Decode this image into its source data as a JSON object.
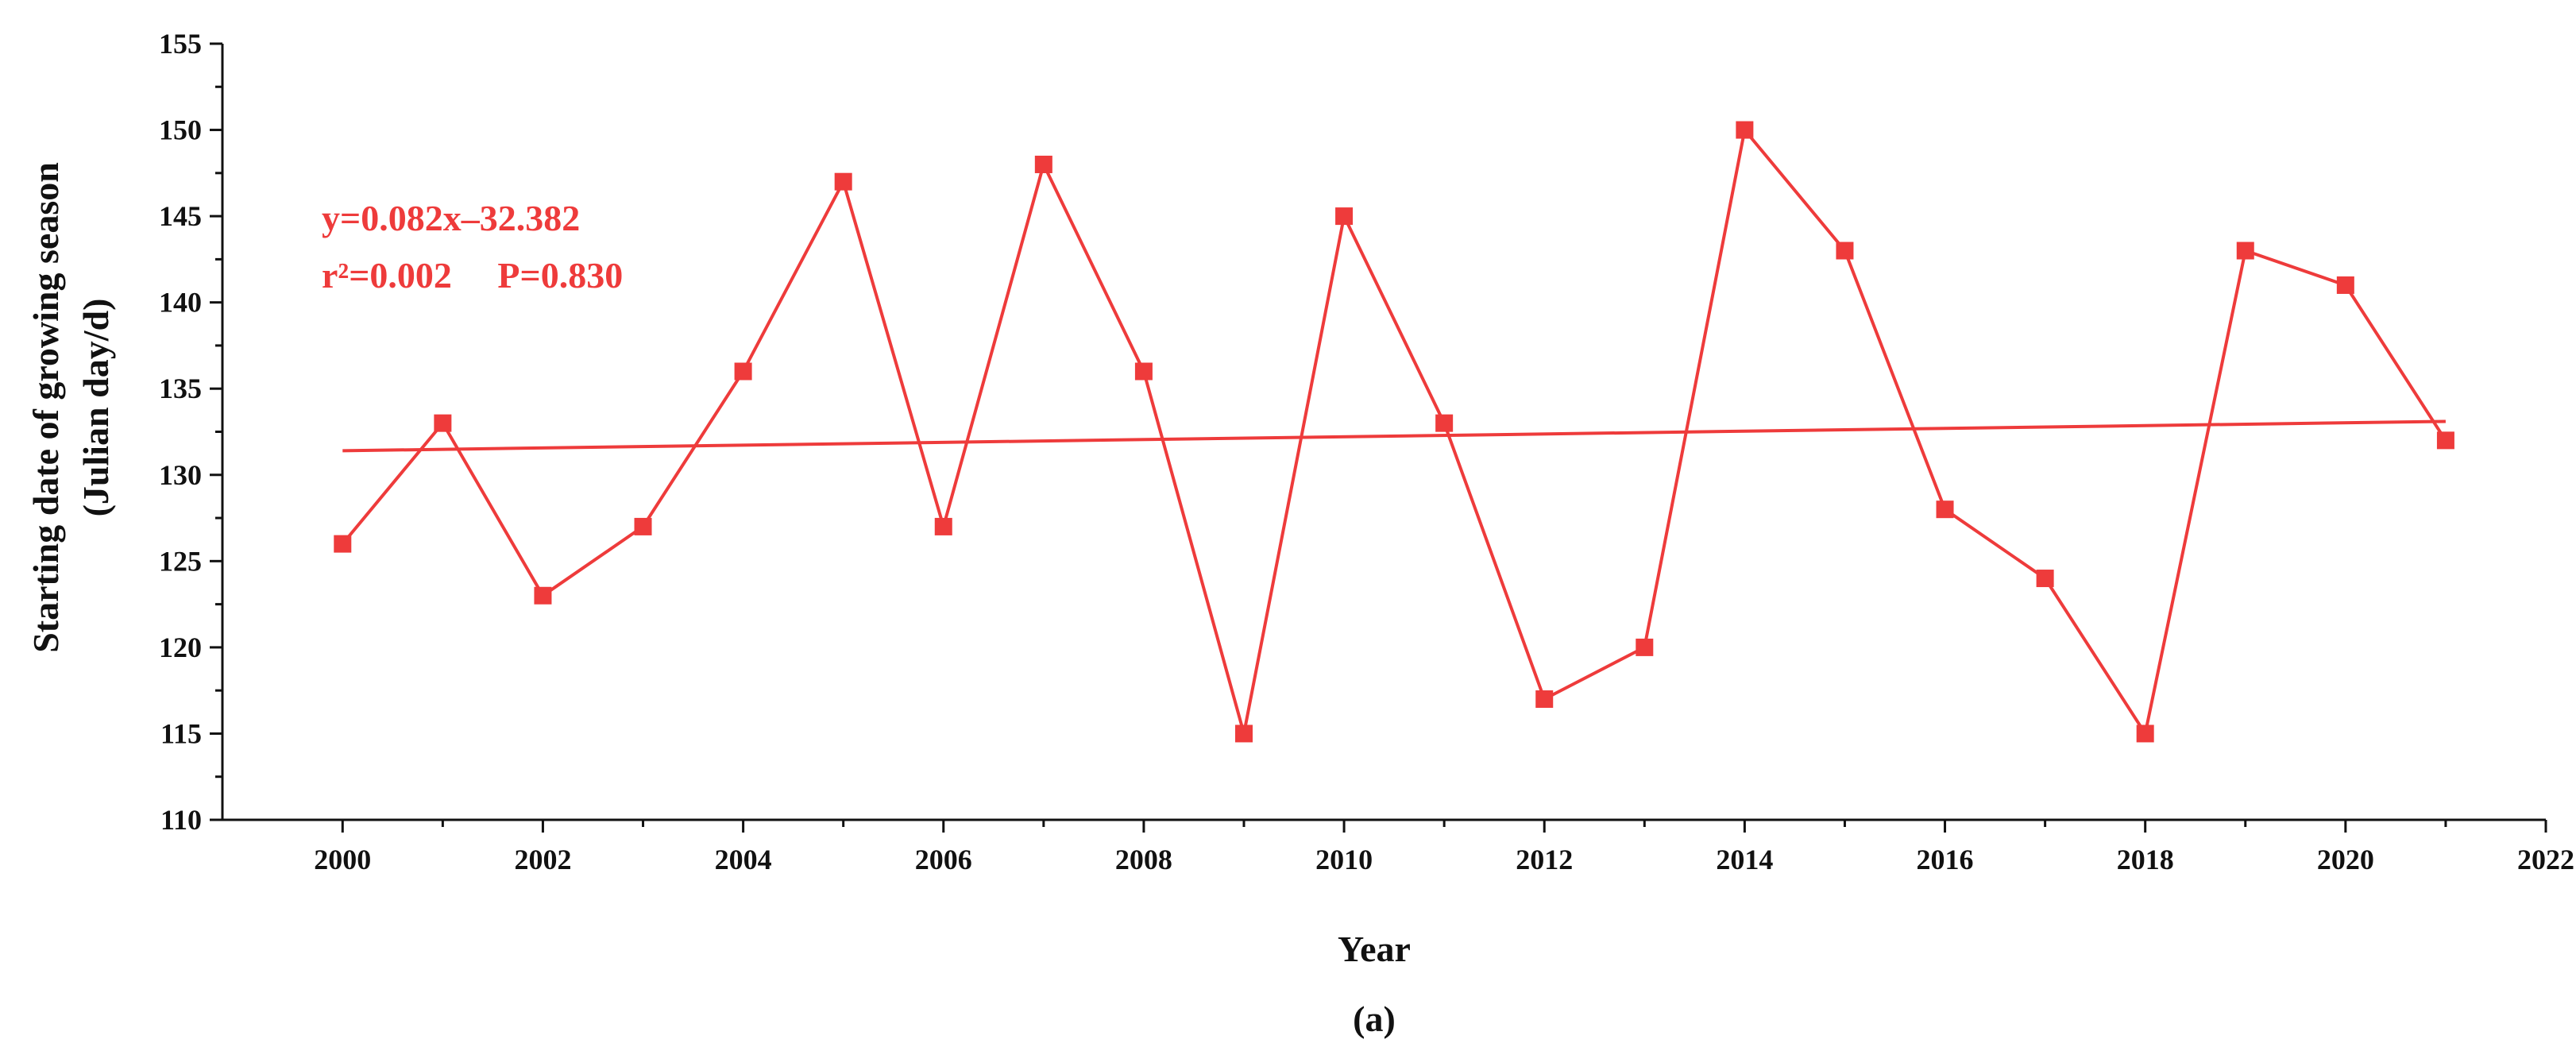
{
  "chart_data": {
    "type": "line",
    "xlabel": "Year",
    "ylabel": [
      "Starting date of growing season",
      "(Julian day/d)"
    ],
    "panel_label": "(a)",
    "xlim": [
      1998.8,
      2022
    ],
    "ylim": [
      110,
      155
    ],
    "x_ticks": [
      2000,
      2002,
      2004,
      2006,
      2008,
      2010,
      2012,
      2014,
      2016,
      2018,
      2020,
      2022
    ],
    "y_ticks": [
      110,
      115,
      120,
      125,
      130,
      135,
      140,
      145,
      150,
      155
    ],
    "grid": false,
    "annotations": [
      "y=0.082x–32.382",
      "r²=0.002     P=0.830"
    ],
    "series": [
      {
        "x": [
          2000,
          2001,
          2002,
          2003,
          2004,
          2005,
          2006,
          2007,
          2008,
          2009,
          2010,
          2011,
          2012,
          2013,
          2014,
          2015,
          2016,
          2017,
          2018,
          2019,
          2020,
          2021
        ],
        "values": [
          126,
          133,
          123,
          127,
          136,
          147,
          127,
          148,
          136,
          115,
          145,
          133,
          117,
          120,
          150,
          143,
          128,
          124,
          115,
          143,
          141,
          132
        ],
        "marker": "square"
      }
    ],
    "trendline": {
      "x": [
        2000,
        2021
      ],
      "y": [
        131.4,
        133.1
      ]
    },
    "colors": {
      "series": "#ee3b3b",
      "axis": "#111111"
    }
  }
}
